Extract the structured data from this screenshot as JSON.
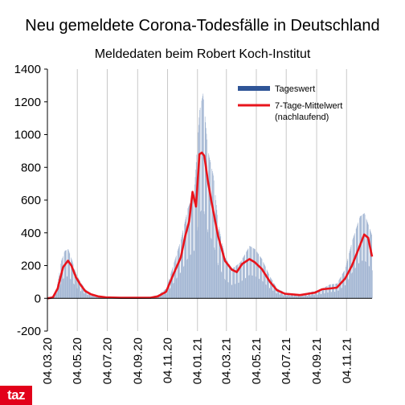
{
  "chart_data": {
    "type": "bar+line",
    "title": "Neu gemeldete Corona-Todesfälle in Deutschland",
    "subtitle": "Meldedaten beim Robert Koch-Institut",
    "xlabel": "",
    "ylabel": "",
    "ylim": [
      -200,
      1400
    ],
    "yticks": [
      -200,
      0,
      200,
      400,
      600,
      800,
      1000,
      1200,
      1400
    ],
    "x_range": [
      "2020-03-04",
      "2021-12-26"
    ],
    "xticks": [
      "04.03.20",
      "04.05.20",
      "04.07.20",
      "04.09.20",
      "04.11.20",
      "04.01.21",
      "04.03.21",
      "04.05.21",
      "04.07.21",
      "04.09.21",
      "04.11.21"
    ],
    "xtick_dates": [
      "2020-03-04",
      "2020-05-04",
      "2020-07-04",
      "2020-09-04",
      "2020-11-04",
      "2021-01-04",
      "2021-03-04",
      "2021-05-04",
      "2021-07-04",
      "2021-09-04",
      "2021-11-04"
    ],
    "grid": "vertical",
    "legend_position": "top-right",
    "series": [
      {
        "name": "Tageswert",
        "kind": "bar",
        "color": "#2f5597",
        "dates": [
          "2020-03-04",
          "2020-03-18",
          "2020-03-25",
          "2020-04-01",
          "2020-04-08",
          "2020-04-15",
          "2020-04-22",
          "2020-05-01",
          "2020-05-10",
          "2020-05-20",
          "2020-06-01",
          "2020-06-15",
          "2020-07-01",
          "2020-08-01",
          "2020-09-01",
          "2020-10-01",
          "2020-10-15",
          "2020-11-01",
          "2020-11-15",
          "2020-12-01",
          "2020-12-15",
          "2020-12-28",
          "2021-01-08",
          "2021-01-15",
          "2021-01-25",
          "2021-02-05",
          "2021-02-15",
          "2021-03-01",
          "2021-03-15",
          "2021-04-01",
          "2021-04-20",
          "2021-05-01",
          "2021-05-15",
          "2021-06-01",
          "2021-06-15",
          "2021-07-01",
          "2021-08-01",
          "2021-09-01",
          "2021-09-15",
          "2021-10-01",
          "2021-10-15",
          "2021-11-01",
          "2021-11-15",
          "2021-12-01",
          "2021-12-10",
          "2021-12-26"
        ],
        "values": [
          0,
          20,
          100,
          230,
          290,
          300,
          240,
          150,
          100,
          55,
          30,
          15,
          8,
          5,
          5,
          10,
          20,
          60,
          200,
          360,
          550,
          650,
          1150,
          1250,
          900,
          750,
          450,
          250,
          180,
          220,
          320,
          300,
          240,
          130,
          60,
          35,
          25,
          45,
          60,
          85,
          90,
          180,
          350,
          500,
          520,
          380
        ]
      },
      {
        "name": "7-Tage-Mittelwert (nachlaufend)",
        "kind": "line",
        "color": "#e8141c",
        "dates": [
          "2020-03-04",
          "2020-03-15",
          "2020-03-25",
          "2020-04-05",
          "2020-04-15",
          "2020-04-22",
          "2020-05-01",
          "2020-05-10",
          "2020-05-20",
          "2020-06-01",
          "2020-06-15",
          "2020-07-01",
          "2020-08-01",
          "2020-09-01",
          "2020-10-01",
          "2020-10-15",
          "2020-11-01",
          "2020-11-15",
          "2020-12-01",
          "2020-12-10",
          "2020-12-18",
          "2020-12-25",
          "2021-01-01",
          "2021-01-08",
          "2021-01-13",
          "2021-01-18",
          "2021-01-25",
          "2021-02-01",
          "2021-02-15",
          "2021-03-01",
          "2021-03-15",
          "2021-03-25",
          "2021-04-05",
          "2021-04-20",
          "2021-05-01",
          "2021-05-15",
          "2021-06-01",
          "2021-06-15",
          "2021-07-01",
          "2021-08-01",
          "2021-09-01",
          "2021-09-15",
          "2021-10-01",
          "2021-10-15",
          "2021-11-01",
          "2021-11-15",
          "2021-12-01",
          "2021-12-10",
          "2021-12-18",
          "2021-12-26"
        ],
        "values": [
          0,
          5,
          60,
          190,
          230,
          200,
          130,
          85,
          45,
          25,
          12,
          6,
          3,
          3,
          4,
          12,
          40,
          140,
          250,
          380,
          470,
          650,
          560,
          880,
          890,
          870,
          720,
          600,
          380,
          230,
          175,
          160,
          210,
          240,
          220,
          180,
          100,
          50,
          28,
          20,
          35,
          55,
          60,
          65,
          120,
          200,
          320,
          390,
          370,
          255
        ]
      }
    ]
  },
  "legend": {
    "bar_label": "Tageswert",
    "line_label_1": "7-Tage-Mittelwert",
    "line_label_2": "(nachlaufend)"
  },
  "logo": {
    "text": "taz"
  }
}
